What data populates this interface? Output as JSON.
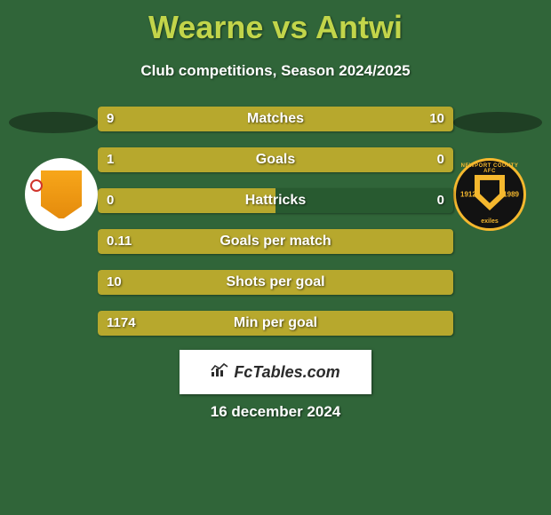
{
  "title": "Wearne vs Antwi",
  "subtitle": "Club competitions, Season 2024/2025",
  "date": "16 december 2024",
  "branding": "FcTables.com",
  "colors": {
    "background": "#306539",
    "title": "#c2d54a",
    "bar_left": "#b7a82d",
    "bar_right": "#b7a82d",
    "row_bg": "#285a30",
    "text": "#ffffff"
  },
  "crest_left": {
    "name": "MK Dons",
    "year_founded": ""
  },
  "crest_right": {
    "name": "Newport County",
    "top_text": "NEWPORT COUNTY AFC",
    "year_left": "1912",
    "year_right": "1989",
    "bottom_text": "exiles"
  },
  "rows": [
    {
      "metric": "Matches",
      "left_val": "9",
      "right_val": "10",
      "left_pct": 47,
      "right_pct": 53
    },
    {
      "metric": "Goals",
      "left_val": "1",
      "right_val": "0",
      "left_pct": 73,
      "right_pct": 27
    },
    {
      "metric": "Hattricks",
      "left_val": "0",
      "right_val": "0",
      "left_pct": 50,
      "right_pct": 0
    },
    {
      "metric": "Goals per match",
      "left_val": "0.11",
      "right_val": "",
      "left_pct": 100,
      "right_pct": 0
    },
    {
      "metric": "Shots per goal",
      "left_val": "10",
      "right_val": "",
      "left_pct": 100,
      "right_pct": 0
    },
    {
      "metric": "Min per goal",
      "left_val": "1174",
      "right_val": "",
      "left_pct": 100,
      "right_pct": 0
    }
  ]
}
